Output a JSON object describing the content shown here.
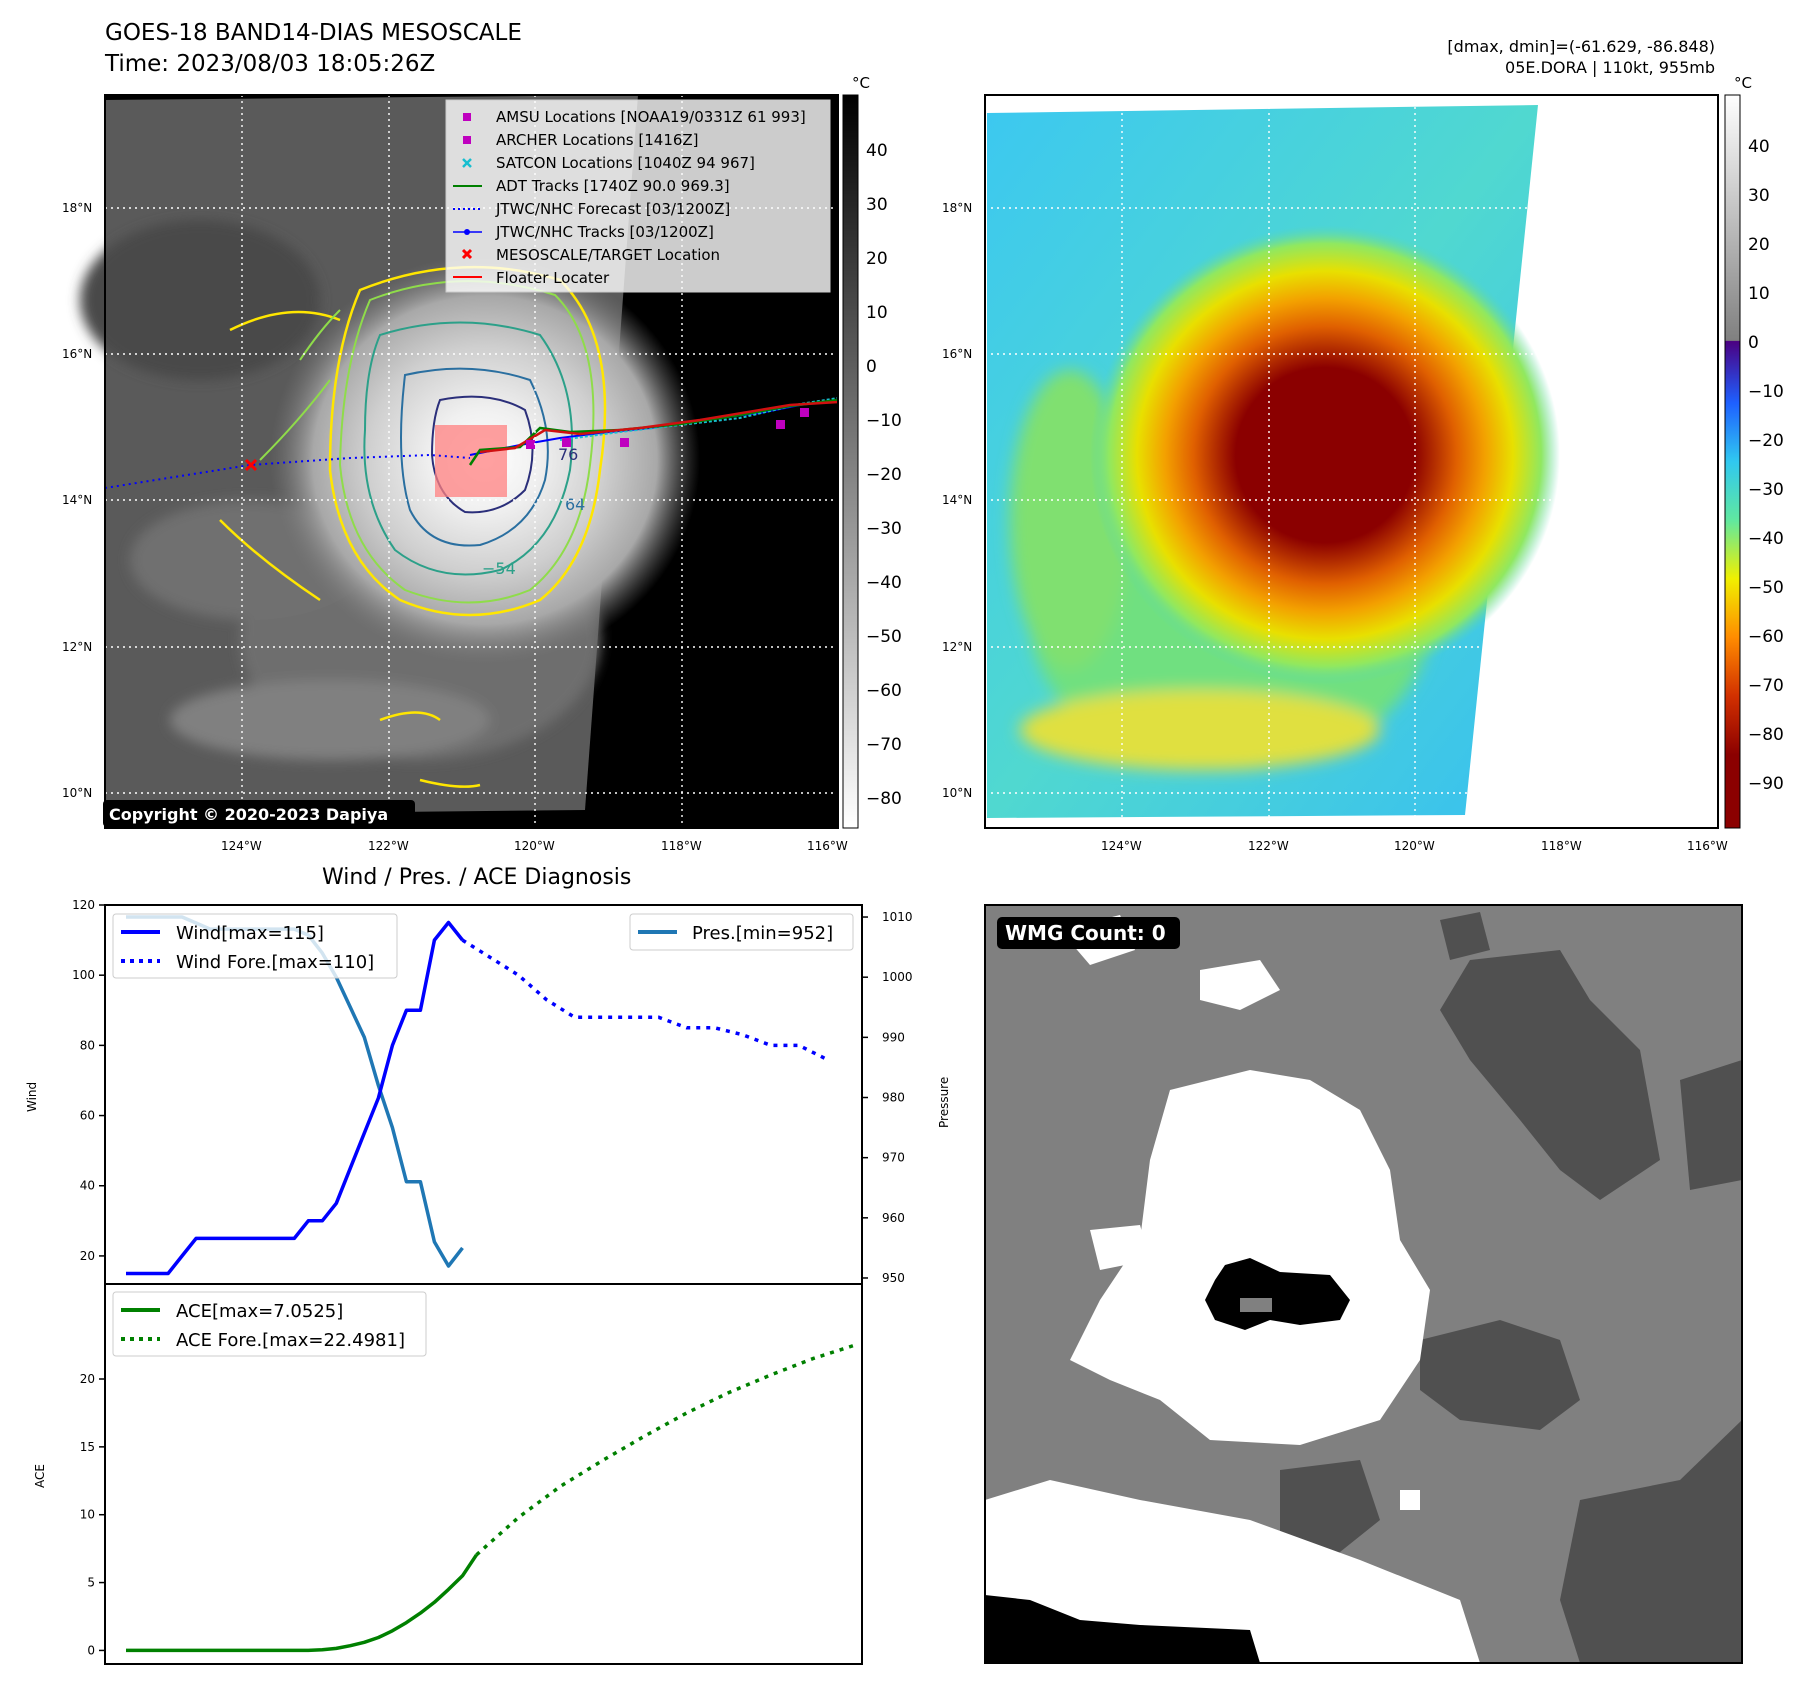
{
  "header": {
    "title": "GOES-18 BAND14-DIAS MESOSCALE",
    "time": "Time: 2023/08/03 18:05:26Z",
    "dmax_dmin": "[dmax, dmin]=(-61.629, -86.848)",
    "storm": "05E.DORA | 110kt, 955mb"
  },
  "map": {
    "lat_labels": [
      "18°N",
      "16°N",
      "14°N",
      "12°N",
      "10°N"
    ],
    "lon_labels": [
      "124°W",
      "122°W",
      "120°W",
      "118°W",
      "116°W"
    ],
    "copyright": "Copyright © 2020-2023 Dapiya",
    "contour_labels": [
      "-54",
      "-64",
      "-76"
    ],
    "legend": [
      {
        "label": "AMSU Locations [NOAA19/0331Z 61 993]",
        "marker": "square",
        "color": "#bf00bf"
      },
      {
        "label": "ARCHER Locations [1416Z]",
        "marker": "square",
        "color": "#bf00bf"
      },
      {
        "label": "SATCON Locations [1040Z 94 967]",
        "marker": "x",
        "color": "#17becf"
      },
      {
        "label": "ADT Tracks [1740Z 90.0 969.3]",
        "marker": "line",
        "color": "#008000"
      },
      {
        "label": "JTWC/NHC Forecast [03/1200Z]",
        "marker": "dotted",
        "color": "#0000ff"
      },
      {
        "label": "JTWC/NHC Tracks [03/1200Z]",
        "marker": "line-dot",
        "color": "#0000ff"
      },
      {
        "label": "MESOSCALE/TARGET Location",
        "marker": "x",
        "color": "#ff0000"
      },
      {
        "label": "Floater Locater",
        "marker": "line",
        "color": "#ff0000"
      }
    ]
  },
  "colorbar_gray": {
    "unit": "°C",
    "ticks": [
      "40",
      "30",
      "20",
      "10",
      "0",
      "−10",
      "−20",
      "−30",
      "−40",
      "−50",
      "−60",
      "−70",
      "−80"
    ]
  },
  "colorbar_color": {
    "unit": "°C",
    "ticks": [
      "40",
      "30",
      "20",
      "10",
      "0",
      "−10",
      "−20",
      "−30",
      "−40",
      "−50",
      "−60",
      "−70",
      "−80",
      "−90"
    ]
  },
  "wind_panel": {
    "title": "Wind / Pres. / ACE Diagnosis",
    "ylabel_left": "Wind",
    "ylabel_right": "Pressure",
    "legend_left": [
      "Wind[max=115]",
      "Wind Fore.[max=110]"
    ],
    "legend_right": [
      "Pres.[min=952]"
    ]
  },
  "ace_panel": {
    "ylabel": "ACE",
    "legend": [
      "ACE[max=7.0525]",
      "ACE Fore.[max=22.4981]"
    ]
  },
  "wmg": {
    "label": "WMG Count: 0"
  },
  "colors": {
    "wind": "#0000ff",
    "pressure": "#1f77b4",
    "ace": "#008000"
  },
  "chart_data": [
    {
      "type": "line",
      "title": "Wind / Pres. / ACE Diagnosis",
      "ylabel": "Wind",
      "ylim": [
        12,
        120
      ],
      "yticks": [
        20,
        40,
        60,
        80,
        100,
        120
      ],
      "series": [
        {
          "name": "Wind[max=115]",
          "style": "solid",
          "x": [
            0,
            1,
            2,
            3,
            4,
            5,
            6,
            7,
            8,
            9,
            10,
            11,
            12,
            13,
            14,
            15,
            16,
            17,
            18,
            19,
            20,
            21,
            22,
            23,
            24,
            25
          ],
          "values": [
            15,
            15,
            15,
            15,
            20,
            25,
            25,
            25,
            25,
            25,
            25,
            25,
            25,
            30,
            30,
            35,
            45,
            55,
            65,
            80,
            90,
            90,
            110,
            115,
            110,
            null
          ]
        },
        {
          "name": "Wind Fore.[max=110]",
          "style": "dotted",
          "x": [
            24,
            26,
            28,
            30,
            32,
            34,
            36,
            38,
            40,
            42,
            44,
            46,
            48,
            50
          ],
          "values": [
            110,
            105,
            100,
            93,
            88,
            88,
            88,
            88,
            85,
            85,
            83,
            80,
            80,
            76
          ]
        }
      ]
    },
    {
      "type": "line",
      "ylabel": "Pressure",
      "ylim": [
        949,
        1012
      ],
      "yticks": [
        950,
        960,
        970,
        980,
        990,
        1000,
        1010
      ],
      "series": [
        {
          "name": "Pres.[min=952]",
          "style": "solid",
          "x": [
            0,
            1,
            2,
            3,
            4,
            5,
            6,
            7,
            8,
            9,
            10,
            11,
            12,
            13,
            14,
            15,
            16,
            17,
            18,
            19,
            20,
            21,
            22,
            23,
            24,
            25
          ],
          "values": [
            1010,
            1010,
            1010,
            1010,
            1010,
            1009,
            1008,
            1008,
            1008,
            1008,
            1008,
            1008,
            1008,
            1007,
            1004,
            1000,
            995,
            990,
            982,
            975,
            966,
            966,
            956,
            952,
            955,
            null
          ]
        }
      ]
    },
    {
      "type": "line",
      "ylabel": "ACE",
      "ylim": [
        -1,
        27
      ],
      "yticks": [
        0,
        5,
        10,
        15,
        20
      ],
      "series": [
        {
          "name": "ACE[max=7.0525]",
          "style": "solid",
          "x": [
            0,
            2,
            4,
            6,
            8,
            10,
            12,
            13,
            14,
            15,
            16,
            17,
            18,
            19,
            20,
            21,
            22,
            23,
            24,
            25
          ],
          "values": [
            0,
            0,
            0,
            0,
            0,
            0,
            0,
            0,
            0.05,
            0.15,
            0.35,
            0.6,
            0.95,
            1.45,
            2.05,
            2.75,
            3.55,
            4.5,
            5.5,
            7.05
          ]
        },
        {
          "name": "ACE Fore.[max=22.4981]",
          "style": "dotted",
          "x": [
            25,
            28,
            31,
            34,
            37,
            40,
            43,
            46,
            49,
            52
          ],
          "values": [
            7.05,
            9.8,
            12.1,
            14.0,
            15.8,
            17.5,
            19.0,
            20.3,
            21.5,
            22.5
          ]
        }
      ]
    }
  ]
}
